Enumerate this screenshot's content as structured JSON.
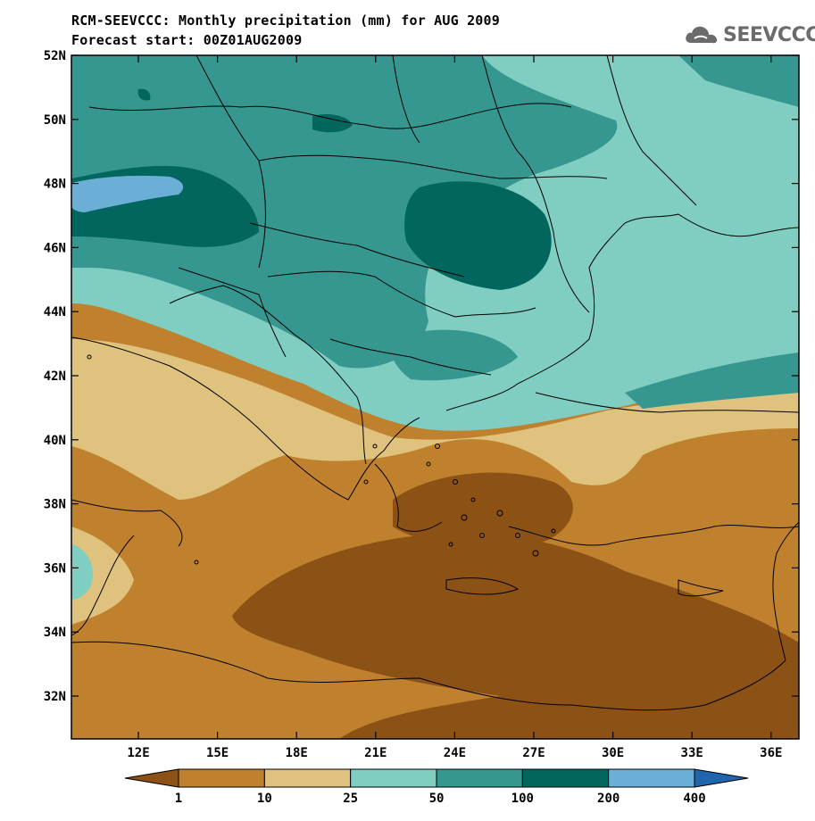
{
  "title_line1": "RCM-SEEVCCC: Monthly precipitation (mm) for AUG 2009",
  "title_line2": "Forecast start: 00Z01AUG2009",
  "logo_text": "SEEVCCC",
  "y_ticks": [
    "52N",
    "50N",
    "48N",
    "46N",
    "44N",
    "42N",
    "40N",
    "38N",
    "36N",
    "34N",
    "32N"
  ],
  "x_ticks": [
    "12E",
    "15E",
    "18E",
    "21E",
    "24E",
    "27E",
    "30E",
    "33E",
    "36E"
  ],
  "colorbar": {
    "labels": [
      "1",
      "10",
      "25",
      "50",
      "100",
      "200",
      "400"
    ],
    "colors": [
      "#8c5215",
      "#bf812d",
      "#dfc27d",
      "#80cdc1",
      "#35978f",
      "#01665e",
      "#6baed6",
      "#2166ac"
    ]
  },
  "colors": {
    "lt1": "#8c5215",
    "c1_10": "#bf812d",
    "c10_25": "#dfc27d",
    "c25_50": "#80cdc1",
    "c50_100": "#35978f",
    "c100_200": "#01665e",
    "c200_400": "#6baed6"
  }
}
